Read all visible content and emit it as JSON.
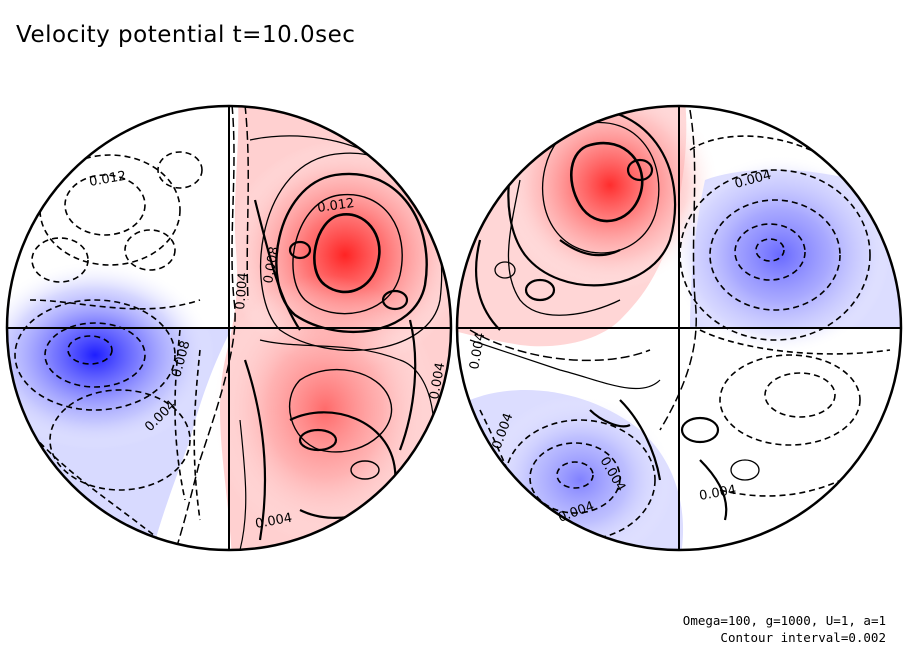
{
  "title": "Velocity potential t=10.0sec",
  "params_line1": "Omega=100, g=1000, U=1, a=1",
  "params_line2": "Contour interval=0.002",
  "contour_labels": {
    "left": [
      "0.012",
      "0.012",
      "0.004",
      "0.008",
      "0.008",
      "0.004",
      "0.004",
      "0.004"
    ],
    "right": [
      "0.004",
      "0.004",
      "0.004",
      "0.004",
      "0.004",
      "0.004"
    ]
  },
  "colors": {
    "positive": "#ff0000",
    "negative": "#0000ff",
    "background": "#ffffff",
    "contour": "#000000"
  }
}
